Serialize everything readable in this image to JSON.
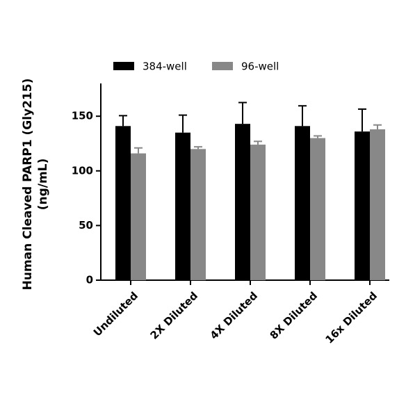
{
  "chart_data": {
    "type": "bar",
    "ylabel": [
      "Human Cleaved PARP1 (Gly215)",
      "(ng/mL)"
    ],
    "categories": [
      "Undiluted",
      "2X Diluted",
      "4X Diluted",
      "8X Diluted",
      "16x Diluted"
    ],
    "series": [
      {
        "name": "384-well",
        "color": "#000000",
        "values": [
          141,
          135,
          143,
          141,
          136
        ],
        "errors": [
          9.5,
          16,
          19.5,
          18.5,
          20.5
        ]
      },
      {
        "name": "96-well",
        "color": "#888888",
        "values": [
          116,
          120,
          124,
          130,
          138
        ],
        "errors": [
          5,
          2,
          3,
          2,
          4
        ]
      }
    ],
    "ylim": [
      0,
      180
    ],
    "yticks": [
      0,
      50,
      100,
      150
    ],
    "legend": "top"
  }
}
